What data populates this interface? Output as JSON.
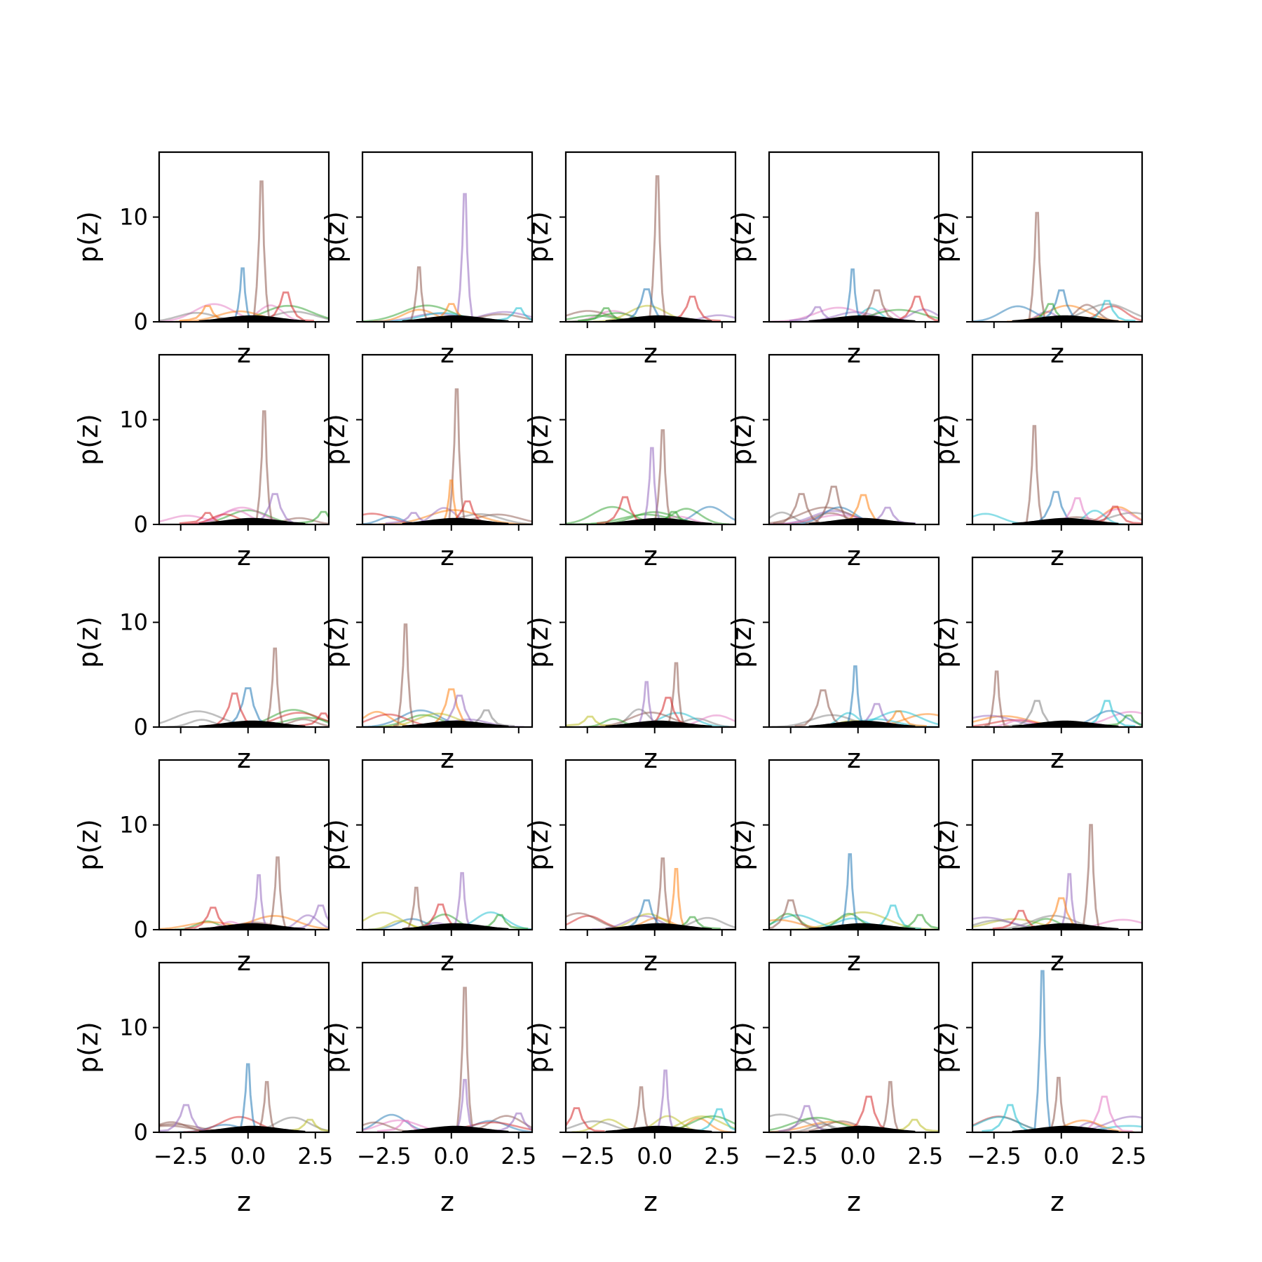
{
  "figure": {
    "rows": 5,
    "cols": 5,
    "background": "#ffffff",
    "peak_color": "#000000",
    "palette": [
      "#1f77b4",
      "#ff7f0e",
      "#2ca02c",
      "#d62728",
      "#9467bd",
      "#8c564b",
      "#e377c2",
      "#7f7f7f",
      "#bcbd22",
      "#17becf"
    ]
  },
  "chart_data": {
    "type": "line",
    "xlabel": "z",
    "ylabel": "p(z)",
    "xlim": [
      -3.3,
      3.0
    ],
    "ylim": [
      0,
      16.2
    ],
    "xticks": [
      -2.5,
      0.0,
      2.5
    ],
    "xtick_labels": [
      "−2.5",
      "0.0",
      "2.5"
    ],
    "yticks": [
      0,
      10
    ],
    "ytick_labels": [
      "0",
      "10"
    ],
    "grid": false,
    "legend": "none",
    "panels": [
      {
        "peaks": [
          [
            0.5,
            13.4,
            5
          ],
          [
            -0.2,
            5.1,
            0
          ],
          [
            1.4,
            2.8,
            3
          ],
          [
            -1.5,
            1.5,
            1
          ]
        ]
      },
      {
        "peaks": [
          [
            0.5,
            12.2,
            4
          ],
          [
            -1.2,
            5.2,
            5
          ],
          [
            0.0,
            1.7,
            1
          ],
          [
            2.5,
            1.3,
            9
          ]
        ]
      },
      {
        "peaks": [
          [
            0.1,
            13.9,
            5
          ],
          [
            -0.3,
            3.1,
            0
          ],
          [
            1.4,
            2.4,
            3
          ],
          [
            -1.8,
            1.3,
            2
          ]
        ]
      },
      {
        "peaks": [
          [
            -0.2,
            5.0,
            0
          ],
          [
            0.7,
            3.0,
            5
          ],
          [
            2.2,
            2.4,
            3
          ],
          [
            -1.5,
            1.4,
            4
          ]
        ]
      },
      {
        "peaks": [
          [
            -0.9,
            10.4,
            5
          ],
          [
            0.0,
            3.0,
            0
          ],
          [
            1.7,
            2.0,
            9
          ],
          [
            -0.4,
            1.7,
            2
          ]
        ]
      },
      {
        "peaks": [
          [
            0.6,
            10.8,
            5
          ],
          [
            1.0,
            2.9,
            4
          ],
          [
            -1.5,
            1.1,
            3
          ],
          [
            2.8,
            1.2,
            2
          ]
        ]
      },
      {
        "peaks": [
          [
            0.2,
            12.9,
            5
          ],
          [
            0.0,
            4.2,
            1
          ],
          [
            0.6,
            2.2,
            3
          ],
          [
            -1.4,
            1.1,
            4
          ]
        ]
      },
      {
        "peaks": [
          [
            0.3,
            9.0,
            5
          ],
          [
            -0.1,
            7.3,
            4
          ],
          [
            -1.1,
            2.6,
            3
          ],
          [
            0.7,
            1.2,
            2
          ]
        ]
      },
      {
        "peaks": [
          [
            -0.9,
            3.6,
            5
          ],
          [
            0.2,
            2.8,
            1
          ],
          [
            -2.1,
            2.9,
            5
          ],
          [
            1.1,
            1.6,
            4
          ]
        ]
      },
      {
        "peaks": [
          [
            -1.0,
            9.4,
            5
          ],
          [
            -0.2,
            3.1,
            0
          ],
          [
            0.6,
            2.5,
            6
          ],
          [
            2.0,
            1.7,
            3
          ]
        ]
      },
      {
        "peaks": [
          [
            1.0,
            7.5,
            5
          ],
          [
            0.0,
            3.7,
            0
          ],
          [
            -0.5,
            3.2,
            3
          ],
          [
            2.8,
            1.3,
            3
          ]
        ]
      },
      {
        "peaks": [
          [
            -1.7,
            9.8,
            5
          ],
          [
            0.0,
            3.6,
            1
          ],
          [
            0.3,
            3.0,
            4
          ],
          [
            1.3,
            1.6,
            7
          ]
        ]
      },
      {
        "peaks": [
          [
            0.8,
            6.1,
            5
          ],
          [
            -0.3,
            4.3,
            4
          ],
          [
            0.5,
            2.8,
            3
          ],
          [
            -2.4,
            1.0,
            8
          ]
        ]
      },
      {
        "peaks": [
          [
            -0.1,
            5.8,
            0
          ],
          [
            -1.3,
            3.5,
            5
          ],
          [
            0.7,
            2.2,
            4
          ],
          [
            1.5,
            1.5,
            1
          ]
        ]
      },
      {
        "peaks": [
          [
            -2.4,
            5.3,
            5
          ],
          [
            1.7,
            2.5,
            9
          ],
          [
            -0.9,
            2.5,
            7
          ],
          [
            2.5,
            1.1,
            2
          ]
        ]
      },
      {
        "peaks": [
          [
            1.1,
            6.9,
            5
          ],
          [
            0.4,
            5.2,
            4
          ],
          [
            -1.3,
            2.1,
            3
          ],
          [
            2.7,
            2.3,
            4
          ]
        ]
      },
      {
        "peaks": [
          [
            0.4,
            5.4,
            4
          ],
          [
            -1.3,
            4.0,
            5
          ],
          [
            -0.4,
            2.4,
            3
          ],
          [
            1.8,
            1.4,
            2
          ]
        ]
      },
      {
        "peaks": [
          [
            0.3,
            6.8,
            5
          ],
          [
            0.8,
            5.8,
            1
          ],
          [
            -0.3,
            2.8,
            0
          ],
          [
            1.4,
            1.2,
            2
          ]
        ]
      },
      {
        "peaks": [
          [
            -0.3,
            7.2,
            0
          ],
          [
            -2.5,
            2.8,
            5
          ],
          [
            1.3,
            2.3,
            9
          ],
          [
            2.3,
            1.4,
            2
          ]
        ]
      },
      {
        "peaks": [
          [
            1.1,
            10.0,
            5
          ],
          [
            0.3,
            5.3,
            4
          ],
          [
            0.0,
            3.0,
            1
          ],
          [
            -1.5,
            1.8,
            3
          ]
        ]
      },
      {
        "peaks": [
          [
            0.0,
            6.5,
            0
          ],
          [
            0.7,
            4.8,
            5
          ],
          [
            -2.3,
            2.6,
            4
          ],
          [
            2.3,
            1.2,
            8
          ]
        ]
      },
      {
        "peaks": [
          [
            0.5,
            13.8,
            5
          ],
          [
            0.5,
            5.0,
            4
          ],
          [
            2.5,
            1.8,
            4
          ],
          [
            -1.7,
            1.1,
            6
          ]
        ]
      },
      {
        "peaks": [
          [
            0.4,
            5.9,
            4
          ],
          [
            -0.5,
            4.3,
            5
          ],
          [
            2.4,
            2.2,
            9
          ],
          [
            -2.9,
            2.3,
            3
          ]
        ]
      },
      {
        "peaks": [
          [
            1.2,
            4.8,
            5
          ],
          [
            0.4,
            3.4,
            3
          ],
          [
            -1.9,
            2.5,
            4
          ],
          [
            2.1,
            1.2,
            8
          ]
        ]
      },
      {
        "peaks": [
          [
            -0.7,
            15.4,
            0
          ],
          [
            -0.1,
            5.2,
            5
          ],
          [
            1.6,
            3.4,
            6
          ],
          [
            -1.9,
            2.6,
            9
          ]
        ]
      }
    ]
  }
}
